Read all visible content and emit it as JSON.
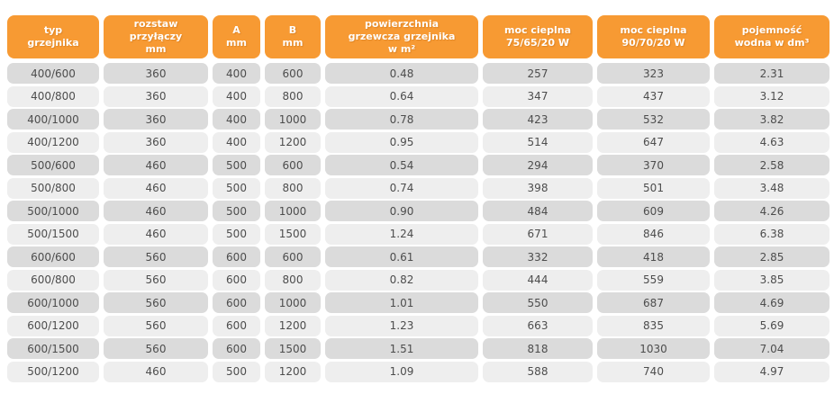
{
  "table": {
    "colors": {
      "accent": "#F79A33",
      "header_text": "#FFFFFF",
      "row_dark": "#DBDBDB",
      "row_light": "#EEEEEE",
      "cell_text": "#4D4D4D",
      "page_background": "#FFFFFF"
    },
    "columns": [
      {
        "id": "typ-grzejnika",
        "label": "typ\ngrzejnika"
      },
      {
        "id": "rozstaw-przylaczy",
        "label": "rozstaw\nprzyłączy\nmm"
      },
      {
        "id": "a-mm",
        "label": "A\nmm"
      },
      {
        "id": "b-mm",
        "label": "B\nmm"
      },
      {
        "id": "powierzchnia-grzewcza",
        "label": "powierzchnia\ngrzewcza grzejnika\nw m²"
      },
      {
        "id": "moc-cieplna-75",
        "label": "moc cieplna\n75/65/20 W"
      },
      {
        "id": "moc-cieplna-90",
        "label": "moc cieplna\n90/70/20 W"
      },
      {
        "id": "pojemnosc-wodna",
        "label": "pojemność\nwodna w dm³"
      }
    ],
    "rows": [
      [
        "400/600",
        "360",
        "400",
        "600",
        "0.48",
        "257",
        "323",
        "2.31"
      ],
      [
        "400/800",
        "360",
        "400",
        "800",
        "0.64",
        "347",
        "437",
        "3.12"
      ],
      [
        "400/1000",
        "360",
        "400",
        "1000",
        "0.78",
        "423",
        "532",
        "3.82"
      ],
      [
        "400/1200",
        "360",
        "400",
        "1200",
        "0.95",
        "514",
        "647",
        "4.63"
      ],
      [
        "500/600",
        "460",
        "500",
        "600",
        "0.54",
        "294",
        "370",
        "2.58"
      ],
      [
        "500/800",
        "460",
        "500",
        "800",
        "0.74",
        "398",
        "501",
        "3.48"
      ],
      [
        "500/1000",
        "460",
        "500",
        "1000",
        "0.90",
        "484",
        "609",
        "4.26"
      ],
      [
        "500/1500",
        "460",
        "500",
        "1500",
        "1.24",
        "671",
        "846",
        "6.38"
      ],
      [
        "600/600",
        "560",
        "600",
        "600",
        "0.61",
        "332",
        "418",
        "2.85"
      ],
      [
        "600/800",
        "560",
        "600",
        "800",
        "0.82",
        "444",
        "559",
        "3.85"
      ],
      [
        "600/1000",
        "560",
        "600",
        "1000",
        "1.01",
        "550",
        "687",
        "4.69"
      ],
      [
        "600/1200",
        "560",
        "600",
        "1200",
        "1.23",
        "663",
        "835",
        "5.69"
      ],
      [
        "600/1500",
        "560",
        "600",
        "1500",
        "1.51",
        "818",
        "1030",
        "7.04"
      ],
      [
        "500/1200",
        "460",
        "500",
        "1200",
        "1.09",
        "588",
        "740",
        "4.97"
      ]
    ]
  }
}
